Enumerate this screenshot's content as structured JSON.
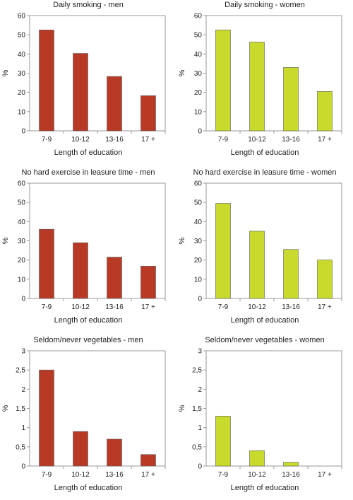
{
  "chart_data": [
    {
      "type": "bar",
      "title": "Daily smoking - men",
      "xlabel": "Length of education",
      "ylabel": "%",
      "categories": [
        "7-9",
        "10-12",
        "13-16",
        "17 +"
      ],
      "values": [
        52.5,
        40.3,
        28.3,
        18.3
      ],
      "ylim": [
        0,
        60
      ],
      "yticks": [
        "0",
        "10",
        "20",
        "30",
        "40",
        "50",
        "60"
      ],
      "bar_color": "#b83a26",
      "grid": false
    },
    {
      "type": "bar",
      "title": "Daily smoking - women",
      "xlabel": "Length of education",
      "ylabel": "%",
      "categories": [
        "7-9",
        "10-12",
        "13-16",
        "17 +"
      ],
      "values": [
        52.5,
        46.2,
        33,
        20.5
      ],
      "ylim": [
        0,
        60
      ],
      "yticks": [
        "0",
        "10",
        "20",
        "30",
        "40",
        "50",
        "60"
      ],
      "bar_color": "#c8da2b",
      "grid": false
    },
    {
      "type": "bar",
      "title": "No hard exercise in leasure time - men",
      "xlabel": "Length of education",
      "ylabel": "%",
      "categories": [
        "7-9",
        "10-12",
        "13-16",
        "17 +"
      ],
      "values": [
        36,
        29,
        21.5,
        16.8
      ],
      "ylim": [
        0,
        60
      ],
      "yticks": [
        "0",
        "10",
        "20",
        "30",
        "40",
        "50",
        "60"
      ],
      "bar_color": "#b83a26",
      "grid": false
    },
    {
      "type": "bar",
      "title": "No hard exercise in leasure time - women",
      "xlabel": "Length of education",
      "ylabel": "%",
      "categories": [
        "7-9",
        "10-12",
        "13-16",
        "17 +"
      ],
      "values": [
        49.5,
        35,
        25.5,
        20
      ],
      "ylim": [
        0,
        60
      ],
      "yticks": [
        "0",
        "10",
        "20",
        "30",
        "40",
        "50",
        "60"
      ],
      "bar_color": "#c8da2b",
      "grid": false
    },
    {
      "type": "bar",
      "title": "Seldom/never vegetables - men",
      "xlabel": "Length of education",
      "ylabel": "%",
      "categories": [
        "7-9",
        "10-12",
        "13-16",
        "17 +"
      ],
      "values": [
        2.5,
        0.9,
        0.7,
        0.3
      ],
      "ylim": [
        0,
        3
      ],
      "yticks": [
        "0",
        "0,5",
        "1",
        "1,5",
        "2",
        "2,5",
        "3"
      ],
      "bar_color": "#b83a26",
      "grid": false
    },
    {
      "type": "bar",
      "title": "Seldom/never vegetables - women",
      "xlabel": "Length of education",
      "ylabel": "%",
      "categories": [
        "7-9",
        "10-12",
        "13-16",
        "17 +"
      ],
      "values": [
        1.3,
        0.4,
        0.1,
        0
      ],
      "ylim": [
        0,
        3
      ],
      "yticks": [
        "0",
        "0,5",
        "1",
        "1,5",
        "2",
        "2,5",
        "3"
      ],
      "bar_color": "#c8da2b",
      "grid": false
    }
  ]
}
